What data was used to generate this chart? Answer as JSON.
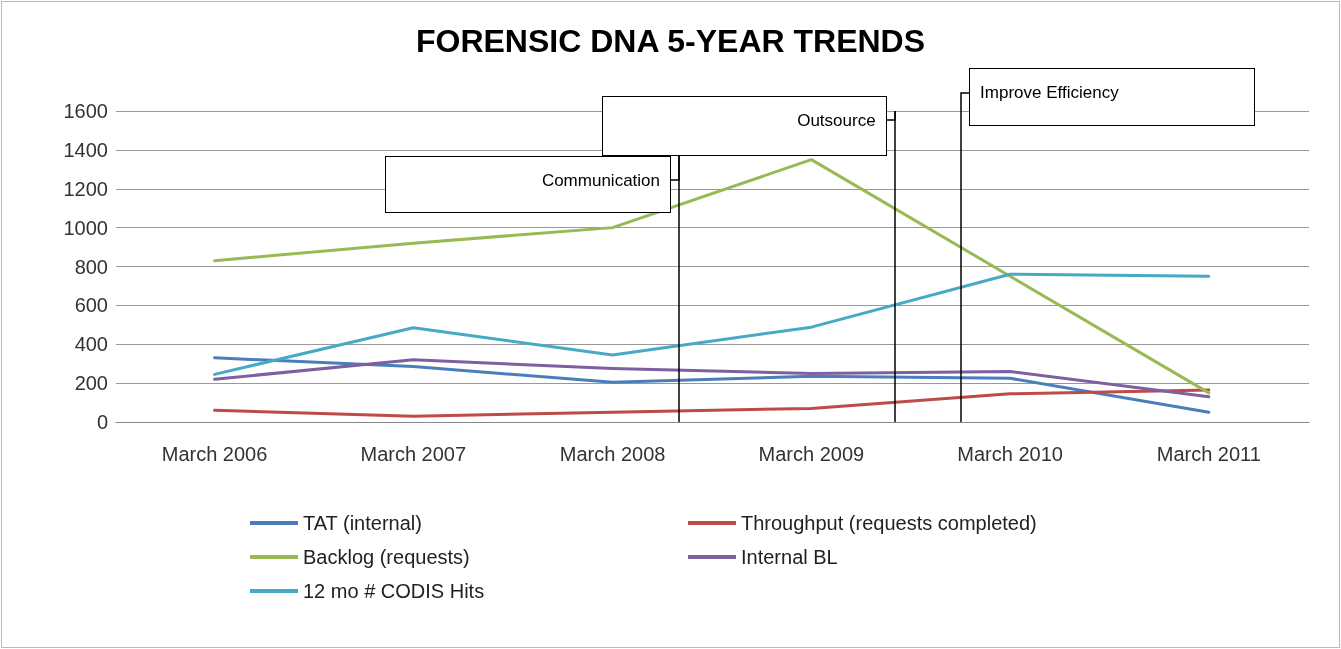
{
  "chart_data": {
    "type": "line",
    "title": "FORENSIC DNA 5-YEAR TRENDS",
    "x": [
      "2006-03",
      "2007-03",
      "2008-03",
      "2009-03",
      "2010-03",
      "2011-03"
    ],
    "xlim": [
      "2005-09",
      "2011-09"
    ],
    "xticks": [
      {
        "value": "2006-03",
        "label": "March 2006"
      },
      {
        "value": "2007-03",
        "label": "March 2007"
      },
      {
        "value": "2008-03",
        "label": "March 2008"
      },
      {
        "value": "2009-03",
        "label": "March 2009"
      },
      {
        "value": "2010-03",
        "label": "March 2010"
      },
      {
        "value": "2011-03",
        "label": "March 2011"
      }
    ],
    "series": [
      {
        "name": "TAT (internal)",
        "color": "#4a7ebb",
        "values": [
          330,
          285,
          205,
          235,
          225,
          50
        ]
      },
      {
        "name": "Throughput (requests completed)",
        "color": "#be4b48",
        "values": [
          60,
          30,
          50,
          70,
          145,
          165
        ]
      },
      {
        "name": "Backlog (requests)",
        "color": "#98b954",
        "values": [
          830,
          920,
          1000,
          1350,
          750,
          150
        ]
      },
      {
        "name": "Internal BL",
        "color": "#7d60a0",
        "values": [
          220,
          320,
          275,
          250,
          260,
          130
        ]
      },
      {
        "name": "12 mo # CODIS Hits",
        "color": "#46aac5",
        "values": [
          245,
          485,
          345,
          488,
          760,
          750
        ]
      }
    ],
    "ylim": [
      0,
      1600
    ],
    "yticks": [
      0,
      200,
      400,
      600,
      800,
      1000,
      1200,
      1400,
      1600
    ],
    "grid": "y",
    "legend": "bottom",
    "marker": "none",
    "line_style": "solid",
    "ref_lines": [
      {
        "axis": "x",
        "value": "2008-07",
        "label": "Communication",
        "color": "#000000"
      },
      {
        "axis": "x",
        "value": "2009-08",
        "label": "Outsource",
        "color": "#000000"
      },
      {
        "axis": "x",
        "value": "2009-12",
        "label": "Improve Efficiency",
        "color": "#000000"
      }
    ]
  }
}
